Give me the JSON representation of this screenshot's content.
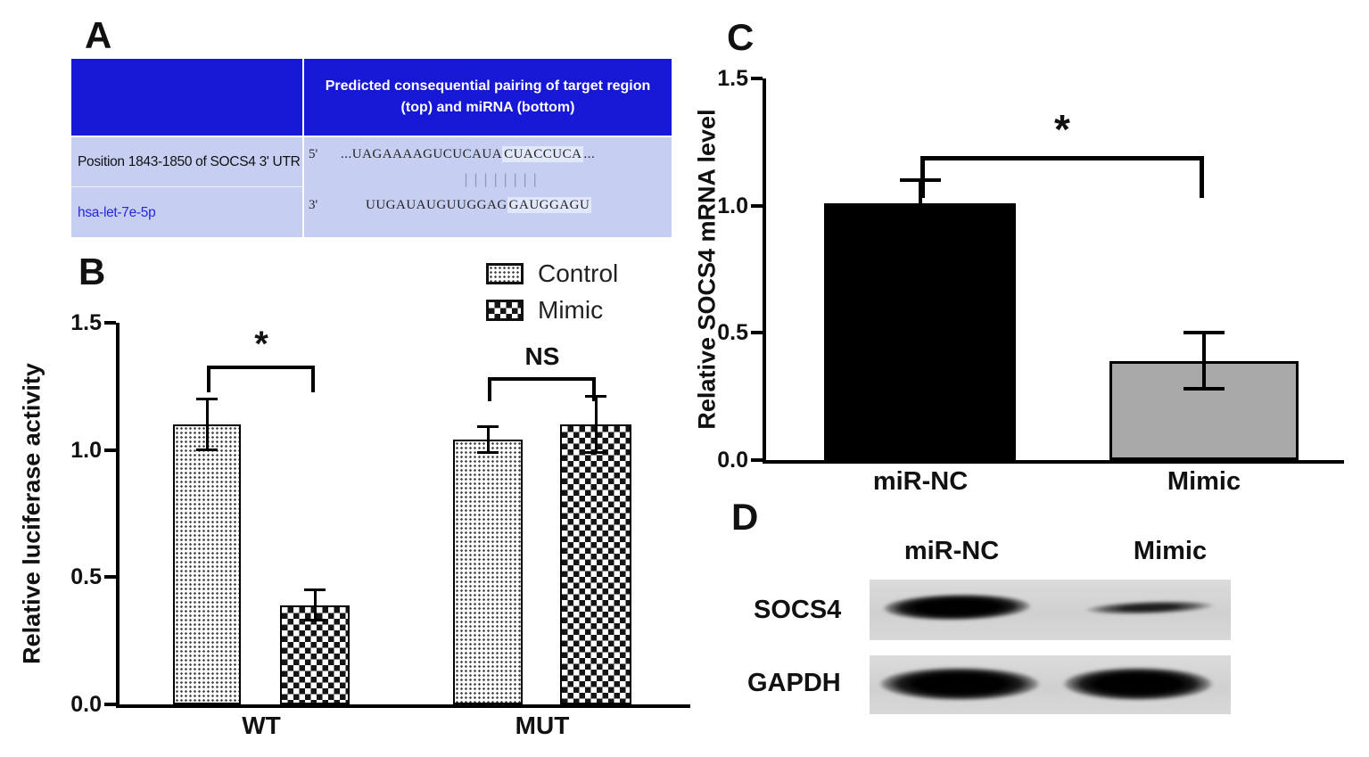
{
  "panels": {
    "a": {
      "label": "A",
      "table": {
        "header": "Predicted consequential pairing of target region (top) and miRNA (bottom)",
        "rows": [
          {
            "name": "Position 1843-1850 of SOCS4 3' UTR",
            "end_label": "5'",
            "seq_prefix": "...UAGAAAAGUCUCAUA",
            "seq_highlight": "CUACCUCA",
            "seq_suffix": "..."
          },
          {
            "name": "hsa-let-7e-5p",
            "end_label": "3'",
            "seq_prefix": "UUGAUAUGUUGGAG",
            "seq_highlight": "GAUGGAGU",
            "seq_suffix": ""
          }
        ],
        "pairing_marks": "||||||||"
      }
    },
    "b": {
      "label": "B"
    },
    "c": {
      "label": "C"
    },
    "d": {
      "label": "D",
      "columns": [
        "miR-NC",
        "Mimic"
      ],
      "blots": [
        {
          "label": "SOCS4",
          "bands": [
            {
              "lane": "miR-NC",
              "intensity": "strong"
            },
            {
              "lane": "Mimic",
              "intensity": "weak"
            }
          ]
        },
        {
          "label": "GAPDH",
          "bands": [
            {
              "lane": "miR-NC",
              "intensity": "strong"
            },
            {
              "lane": "Mimic",
              "intensity": "strong"
            }
          ]
        }
      ]
    }
  },
  "chart_data": [
    {
      "panel": "B",
      "type": "bar",
      "title": "",
      "ylabel": "Relative luciferase activity",
      "ylim": [
        0,
        1.5
      ],
      "yticks": [
        0.0,
        0.5,
        1.0,
        1.5
      ],
      "categories": [
        "WT",
        "MUT"
      ],
      "series": [
        {
          "name": "Control",
          "pattern": "stipple",
          "values": [
            1.1,
            1.04
          ],
          "errors": [
            0.1,
            0.05
          ]
        },
        {
          "name": "Mimic",
          "pattern": "checker",
          "values": [
            0.39,
            1.1
          ],
          "errors": [
            0.06,
            0.11
          ]
        }
      ],
      "annotations": [
        {
          "group": "WT",
          "text": "*"
        },
        {
          "group": "MUT",
          "text": "NS"
        }
      ],
      "legend_position": "top-right",
      "grid": false
    },
    {
      "panel": "C",
      "type": "bar",
      "title": "",
      "ylabel": "Relative SOCS4 mRNA level",
      "ylim": [
        0,
        1.5
      ],
      "yticks": [
        0.0,
        0.5,
        1.0,
        1.5
      ],
      "categories": [
        "miR-NC",
        "Mimic"
      ],
      "values": [
        1.01,
        0.39
      ],
      "errors": [
        0.09,
        0.11
      ],
      "bar_colors": [
        "#000000",
        "#a9a9a9"
      ],
      "annotations": [
        {
          "between": [
            "miR-NC",
            "Mimic"
          ],
          "text": "*"
        }
      ],
      "grid": false
    }
  ],
  "colors": {
    "table_header_bg": "#1717d6",
    "table_body_bg": "#c6cff2",
    "table_link_text": "#2626dd",
    "bar_black": "#000000",
    "bar_gray": "#a9a9a9"
  }
}
